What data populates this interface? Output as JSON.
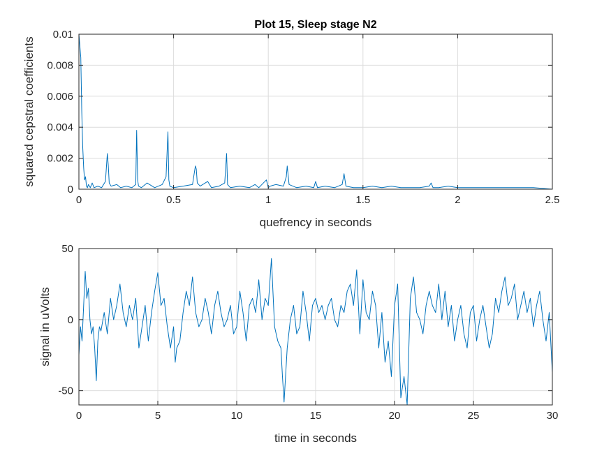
{
  "chart_data": [
    {
      "type": "line",
      "title": "Plot 15, Sleep stage N2",
      "xlabel": "quefrency in seconds",
      "ylabel": "squared cepstral coefficients",
      "xlim": [
        0,
        2.5
      ],
      "ylim": [
        0,
        0.01
      ],
      "xticks": [
        0,
        0.5,
        1,
        1.5,
        2,
        2.5
      ],
      "xtick_labels": [
        "0",
        "0.5",
        "1",
        "1.5",
        "2",
        "2.5"
      ],
      "yticks": [
        0,
        0.002,
        0.004,
        0.006,
        0.008,
        0.01
      ],
      "ytick_labels": [
        "0",
        "0.002",
        "0.004",
        "0.006",
        "0.008",
        "0.01"
      ],
      "grid": true,
      "color": "#0072BD",
      "series": [
        {
          "x": [
            0.0,
            0.01,
            0.015,
            0.02,
            0.025,
            0.03,
            0.035,
            0.04,
            0.045,
            0.05,
            0.06,
            0.07,
            0.08,
            0.1,
            0.12,
            0.14,
            0.15,
            0.155,
            0.16,
            0.17,
            0.2,
            0.22,
            0.25,
            0.28,
            0.3,
            0.305,
            0.31,
            0.315,
            0.33,
            0.36,
            0.4,
            0.44,
            0.46,
            0.47,
            0.475,
            0.48,
            0.5,
            0.55,
            0.6,
            0.615,
            0.62,
            0.625,
            0.64,
            0.68,
            0.7,
            0.74,
            0.77,
            0.78,
            0.785,
            0.8,
            0.85,
            0.9,
            0.93,
            0.95,
            0.99,
            1.0,
            1.01,
            1.04,
            1.08,
            1.095,
            1.1,
            1.11,
            1.15,
            1.2,
            1.24,
            1.25,
            1.26,
            1.3,
            1.35,
            1.39,
            1.4,
            1.41,
            1.45,
            1.5,
            1.55,
            1.6,
            1.65,
            1.7,
            1.75,
            1.8,
            1.85,
            1.86,
            1.87,
            1.9,
            1.95,
            2.0,
            2.05,
            2.1,
            2.2,
            2.3,
            2.4,
            2.5
          ],
          "y": [
            0.01,
            0.0085,
            0.005,
            0.0028,
            0.0014,
            0.0006,
            0.0008,
            0.0002,
            0.0001,
            0.0003,
            0.0001,
            0.0004,
            0.0001,
            0.0002,
            0.0001,
            0.0005,
            0.0023,
            0.0016,
            0.0004,
            0.0002,
            0.0003,
            0.0001,
            0.0002,
            0.0001,
            0.0003,
            0.0038,
            0.0006,
            0.0002,
            0.0001,
            0.0004,
            0.0001,
            0.0003,
            0.0008,
            0.0037,
            0.0006,
            0.0002,
            0.0001,
            0.0002,
            0.0003,
            0.0015,
            0.0013,
            0.0004,
            0.0002,
            0.0005,
            0.0001,
            0.0002,
            0.0004,
            0.0023,
            0.0003,
            0.0001,
            0.0002,
            0.0001,
            0.0003,
            0.0001,
            0.0006,
            0.0001,
            0.0002,
            0.0003,
            0.0002,
            0.0008,
            0.0015,
            0.0003,
            0.0001,
            0.0002,
            0.0001,
            0.0005,
            0.0001,
            0.0002,
            0.0001,
            0.0003,
            0.001,
            0.0002,
            0.0001,
            0.0001,
            0.0002,
            0.0001,
            0.0002,
            0.0001,
            0.0001,
            0.0001,
            0.0002,
            0.0004,
            0.0001,
            0.0001,
            0.0002,
            0.0001,
            0.0001,
            0.0001,
            0.0001,
            0.0001,
            0.0001,
            0.0
          ]
        }
      ]
    },
    {
      "type": "line",
      "title": "",
      "xlabel": "time in seconds",
      "ylabel": "signal in uVolts",
      "xlim": [
        0,
        30
      ],
      "ylim": [
        -60,
        50
      ],
      "xticks": [
        0,
        5,
        10,
        15,
        20,
        25,
        30
      ],
      "xtick_labels": [
        "0",
        "5",
        "10",
        "15",
        "20",
        "25",
        "30"
      ],
      "yticks": [
        -50,
        0,
        50
      ],
      "ytick_labels": [
        "-50",
        "0",
        "50"
      ],
      "grid": true,
      "color": "#0072BD",
      "series": [
        {
          "x": [
            0.0,
            0.1,
            0.2,
            0.3,
            0.4,
            0.5,
            0.6,
            0.7,
            0.8,
            0.9,
            1.0,
            1.1,
            1.2,
            1.3,
            1.4,
            1.6,
            1.8,
            2.0,
            2.2,
            2.4,
            2.6,
            2.8,
            3.0,
            3.2,
            3.4,
            3.6,
            3.8,
            4.0,
            4.2,
            4.4,
            4.6,
            4.8,
            5.0,
            5.2,
            5.4,
            5.6,
            5.8,
            6.0,
            6.1,
            6.2,
            6.4,
            6.6,
            6.8,
            7.0,
            7.2,
            7.4,
            7.6,
            7.8,
            8.0,
            8.2,
            8.4,
            8.6,
            8.8,
            9.0,
            9.2,
            9.4,
            9.6,
            9.8,
            10.0,
            10.2,
            10.4,
            10.6,
            10.8,
            11.0,
            11.2,
            11.4,
            11.6,
            11.8,
            12.0,
            12.2,
            12.4,
            12.6,
            12.8,
            12.9,
            13.0,
            13.2,
            13.4,
            13.6,
            13.8,
            14.0,
            14.2,
            14.4,
            14.6,
            14.8,
            15.0,
            15.2,
            15.4,
            15.6,
            15.8,
            16.0,
            16.2,
            16.4,
            16.6,
            16.8,
            17.0,
            17.2,
            17.4,
            17.6,
            17.8,
            18.0,
            18.2,
            18.4,
            18.6,
            18.8,
            19.0,
            19.2,
            19.4,
            19.6,
            19.8,
            20.0,
            20.2,
            20.4,
            20.6,
            20.8,
            21.0,
            21.2,
            21.4,
            21.6,
            21.8,
            22.0,
            22.2,
            22.4,
            22.6,
            22.8,
            23.0,
            23.2,
            23.4,
            23.6,
            23.8,
            24.0,
            24.2,
            24.4,
            24.6,
            24.8,
            25.0,
            25.2,
            25.4,
            25.6,
            25.8,
            26.0,
            26.2,
            26.4,
            26.6,
            26.8,
            27.0,
            27.2,
            27.4,
            27.6,
            27.8,
            28.0,
            28.2,
            28.4,
            28.6,
            28.8,
            29.0,
            29.2,
            29.4,
            29.6,
            29.8,
            30.0
          ],
          "y": [
            -25,
            -5,
            -15,
            10,
            34,
            15,
            22,
            0,
            -10,
            -5,
            -20,
            -43,
            -15,
            -5,
            -8,
            5,
            -10,
            15,
            0,
            10,
            25,
            5,
            -5,
            10,
            0,
            15,
            -20,
            -5,
            10,
            -15,
            5,
            20,
            33,
            10,
            15,
            -5,
            -20,
            -5,
            -30,
            -20,
            -15,
            5,
            20,
            10,
            30,
            5,
            -5,
            0,
            15,
            5,
            -10,
            10,
            20,
            5,
            -5,
            0,
            10,
            -10,
            -5,
            20,
            5,
            -15,
            10,
            15,
            5,
            28,
            0,
            15,
            10,
            43,
            -5,
            -15,
            -20,
            -40,
            -58,
            -20,
            0,
            10,
            -10,
            -5,
            20,
            5,
            -15,
            10,
            15,
            5,
            10,
            0,
            10,
            15,
            0,
            -5,
            10,
            5,
            20,
            25,
            10,
            35,
            -10,
            28,
            5,
            0,
            20,
            10,
            -20,
            5,
            -30,
            -15,
            -40,
            10,
            25,
            -55,
            -40,
            -60,
            15,
            30,
            5,
            0,
            -10,
            10,
            20,
            10,
            5,
            25,
            0,
            20,
            -5,
            10,
            -15,
            0,
            10,
            -10,
            -20,
            5,
            10,
            -15,
            0,
            10,
            -5,
            -20,
            -10,
            15,
            5,
            20,
            30,
            10,
            15,
            25,
            0,
            10,
            20,
            5,
            15,
            -5,
            10,
            20,
            0,
            -15,
            5,
            -37
          ]
        }
      ]
    }
  ]
}
